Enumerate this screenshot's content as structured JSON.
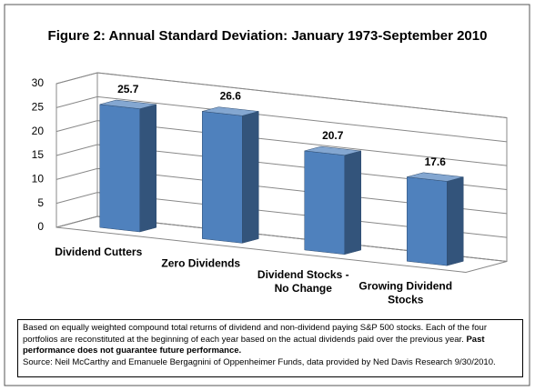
{
  "chart_data": {
    "type": "bar3d",
    "title": "Figure 2: Annual Standard Deviation: January 1973-September 2010",
    "categories": [
      "Dividend Cutters",
      "Zero Dividends",
      "Dividend Stocks -\nNo Change",
      "Growing Dividend\nStocks"
    ],
    "values": [
      25.7,
      26.6,
      20.7,
      17.6
    ],
    "color": "#4f81bd",
    "ylim": [
      0,
      30
    ],
    "yticks": [
      0,
      5,
      10,
      15,
      20,
      25,
      30
    ],
    "grid": true
  },
  "note": {
    "text": "Based on equally weighted compound total returns of dividend and non-dividend paying S&P 500 stocks. Each of the four portfolios are reconstituted at the beginning of each year based on the actual dividends paid over the previous year.",
    "bold": "Past performance does not guarantee future performance.",
    "source": "Source: Neil McCarthy and Emanuele Bergagnini of Oppenheimer Funds, data provided by Ned Davis Research 9/30/2010."
  }
}
